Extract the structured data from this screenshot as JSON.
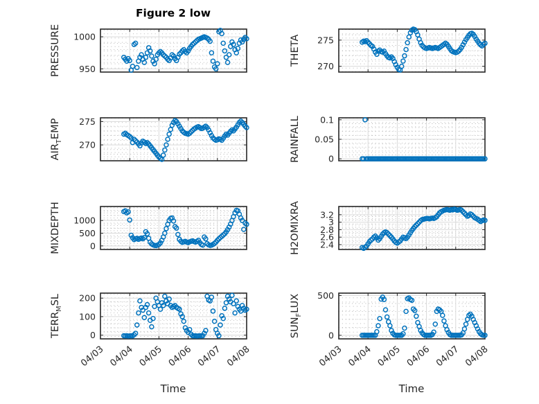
{
  "figure": {
    "title": "Figure 2 low",
    "xlabel": "Time"
  },
  "palette": {
    "marker": "#0072BD",
    "axis": "#262626",
    "text": "#262626",
    "grid_major": "#d9d9d9",
    "grid_minor": "#a8a8a8",
    "title": "#000000",
    "background": "#ffffff"
  },
  "chart_data": [
    {
      "type": "scatter",
      "name": "PRESSURE",
      "row": 0,
      "col": 0,
      "ylabel": {
        "pre": "PRESSURE",
        "sub": "",
        "post": ""
      },
      "ylim": [
        945,
        1012
      ],
      "yticks": [
        950,
        1000
      ],
      "ytick_labels": [
        "950",
        "1000"
      ],
      "y_minor_step": 10,
      "xlim": [
        3,
        8
      ],
      "xticks": [
        3,
        4,
        5,
        6,
        7,
        8
      ],
      "xtick_labels": [],
      "x_minor_step": 0.125,
      "x_start": 3.8,
      "x_step": 0.05,
      "y": [
        968,
        965,
        962,
        966,
        963,
        948,
        954,
        988,
        990,
        952,
        962,
        968,
        972,
        965,
        960,
        968,
        975,
        983,
        978,
        970,
        962,
        958,
        965,
        972,
        975,
        977,
        975,
        972,
        970,
        968,
        965,
        963,
        967,
        972,
        970,
        966,
        963,
        968,
        973,
        975,
        978,
        980,
        977,
        975,
        978,
        982,
        985,
        988,
        990,
        992,
        994,
        996,
        997,
        998,
        999,
        1000,
        999,
        998,
        996,
        993,
        975,
        962,
        953,
        950,
        958,
        1008,
        1010,
        1005,
        990,
        978,
        968,
        960,
        972,
        985,
        992,
        988,
        980,
        975,
        982,
        990,
        995,
        992,
        996,
        999,
        997
      ]
    },
    {
      "type": "scatter",
      "name": "THETA",
      "row": 0,
      "col": 1,
      "ylabel": {
        "pre": "THETA",
        "sub": "",
        "post": ""
      },
      "ylim": [
        268.9,
        277.1
      ],
      "yticks": [
        270,
        275
      ],
      "ytick_labels": [
        "270",
        "275"
      ],
      "y_minor_step": 1,
      "xlim": [
        3,
        8
      ],
      "xticks": [
        3,
        4,
        5,
        6,
        7,
        8
      ],
      "xtick_labels": [],
      "x_minor_step": 0.125,
      "x_start": 3.8,
      "x_step": 0.05,
      "y": [
        274.6,
        274.8,
        274.7,
        274.9,
        274.6,
        274.3,
        274.0,
        273.8,
        273.3,
        272.7,
        272.3,
        272.9,
        273.1,
        272.8,
        272.7,
        272.9,
        272.4,
        272.0,
        271.7,
        271.6,
        271.8,
        271.5,
        270.9,
        270.3,
        269.8,
        269.4,
        269.3,
        270.0,
        271.0,
        272.0,
        273.2,
        274.5,
        275.6,
        276.4,
        276.9,
        277.1,
        277.0,
        276.6,
        276.0,
        275.2,
        274.5,
        274.0,
        273.7,
        273.5,
        273.4,
        273.5,
        273.6,
        273.5,
        273.4,
        273.5,
        273.6,
        273.5,
        273.4,
        273.6,
        273.8,
        274.0,
        274.2,
        274.4,
        274.2,
        273.8,
        273.4,
        273.0,
        272.8,
        272.7,
        272.6,
        272.7,
        272.9,
        273.2,
        273.6,
        274.1,
        274.6,
        275.1,
        275.5,
        275.9,
        276.2,
        276.3,
        276.1,
        275.7,
        275.2,
        274.8,
        274.4,
        274.1,
        273.9,
        274.2,
        274.4
      ]
    },
    {
      "type": "scatter",
      "name": "AIR_TEMP",
      "row": 1,
      "col": 0,
      "ylabel": {
        "pre": "AIR",
        "sub": "T",
        "post": "EMP"
      },
      "ylim": [
        266.6,
        275.8
      ],
      "yticks": [
        270,
        275
      ],
      "ytick_labels": [
        "270",
        "275"
      ],
      "y_minor_step": 1,
      "xlim": [
        3,
        8
      ],
      "xticks": [
        3,
        4,
        5,
        6,
        7,
        8
      ],
      "xtick_labels": [],
      "x_minor_step": 0.125,
      "x_start": 3.8,
      "x_step": 0.05,
      "y": [
        272.3,
        272.5,
        272.2,
        272.0,
        271.8,
        271.5,
        270.5,
        271.2,
        270.9,
        270.6,
        270.2,
        269.8,
        270.4,
        270.8,
        270.6,
        270.3,
        270.5,
        270.2,
        269.8,
        269.4,
        269.0,
        268.6,
        268.2,
        267.8,
        267.4,
        267.1,
        266.9,
        267.8,
        268.9,
        270.0,
        271.2,
        272.3,
        273.3,
        274.2,
        274.8,
        275.2,
        275.0,
        274.5,
        274.0,
        273.5,
        273.0,
        272.7,
        272.5,
        272.4,
        272.3,
        272.5,
        272.8,
        273.1,
        273.4,
        273.6,
        273.8,
        273.9,
        273.7,
        273.5,
        273.6,
        273.8,
        274.0,
        273.7,
        273.2,
        272.6,
        272.0,
        271.5,
        271.2,
        271.0,
        271.1,
        271.3,
        271.2,
        271.0,
        271.4,
        271.9,
        272.3,
        272.1,
        272.5,
        272.9,
        273.2,
        273.0,
        273.4,
        273.8,
        274.3,
        274.8,
        275.1,
        274.8,
        274.4,
        274.0,
        273.7
      ]
    },
    {
      "type": "scatter",
      "name": "RAINFALL",
      "row": 1,
      "col": 1,
      "ylabel": {
        "pre": "RAINFALL",
        "sub": "",
        "post": ""
      },
      "ylim": [
        -0.005,
        0.105
      ],
      "yticks": [
        0,
        0.05,
        0.1
      ],
      "ytick_labels": [
        "0",
        "0.05",
        "0.1"
      ],
      "y_minor_step": 0.01,
      "xlim": [
        3,
        8
      ],
      "xticks": [
        3,
        4,
        5,
        6,
        7,
        8
      ],
      "xtick_labels": [],
      "x_minor_step": 0.125,
      "x_start": 3.8,
      "x_step": 0.05,
      "y": [
        0,
        0,
        0.1,
        0,
        0,
        0,
        0,
        0,
        0,
        0,
        0,
        0,
        0,
        0,
        0,
        0,
        0,
        0,
        0,
        0,
        0,
        0,
        0,
        0,
        0,
        0,
        0,
        0,
        0,
        0,
        0,
        0,
        0,
        0,
        0,
        0,
        0,
        0,
        0,
        0,
        0,
        0,
        0,
        0,
        0,
        0,
        0,
        0,
        0,
        0,
        0,
        0,
        0,
        0,
        0,
        0,
        0,
        0,
        0,
        0,
        0,
        0,
        0,
        0,
        0,
        0,
        0,
        0,
        0,
        0,
        0,
        0,
        0,
        0,
        0,
        0,
        0,
        0,
        0,
        0,
        0,
        0,
        0,
        0,
        0
      ]
    },
    {
      "type": "scatter",
      "name": "MIXDEPTH",
      "row": 2,
      "col": 0,
      "ylabel": {
        "pre": "MIXDEPTH",
        "sub": "",
        "post": ""
      },
      "ylim": [
        -140,
        1550
      ],
      "yticks": [
        0,
        500,
        1000
      ],
      "ytick_labels": [
        "0",
        "500",
        "1000"
      ],
      "y_minor_step": 100,
      "xlim": [
        3,
        8
      ],
      "xticks": [
        3,
        4,
        5,
        6,
        7,
        8
      ],
      "xtick_labels": [],
      "x_minor_step": 0.125,
      "x_start": 3.8,
      "x_step": 0.05,
      "y": [
        1350,
        1380,
        1300,
        1340,
        1020,
        420,
        320,
        250,
        280,
        300,
        260,
        290,
        310,
        280,
        330,
        560,
        480,
        300,
        150,
        80,
        40,
        20,
        10,
        30,
        60,
        120,
        220,
        350,
        500,
        680,
        850,
        1000,
        1080,
        1100,
        980,
        760,
        700,
        450,
        260,
        180,
        140,
        160,
        180,
        150,
        130,
        160,
        180,
        200,
        170,
        150,
        180,
        220,
        130,
        60,
        30,
        350,
        280,
        90,
        40,
        20,
        30,
        60,
        100,
        150,
        220,
        280,
        330,
        380,
        430,
        480,
        550,
        640,
        740,
        860,
        1000,
        1150,
        1300,
        1400,
        1380,
        1250,
        1100,
        1000,
        650,
        900,
        850
      ]
    },
    {
      "type": "scatter",
      "name": "H2OMIXRA",
      "row": 2,
      "col": 1,
      "ylabel": {
        "pre": "H2OMIXRA",
        "sub": "",
        "post": ""
      },
      "ylim": [
        2.27,
        3.42
      ],
      "yticks": [
        2.4,
        2.6,
        2.8,
        3,
        3.2
      ],
      "ytick_labels": [
        "2.4",
        "2.6",
        "2.8",
        "3",
        "3.2"
      ],
      "y_minor_step": 0.05,
      "xlim": [
        3,
        8
      ],
      "xticks": [
        3,
        4,
        5,
        6,
        7,
        8
      ],
      "xtick_labels": [],
      "x_minor_step": 0.125,
      "x_start": 3.8,
      "x_step": 0.05,
      "y": [
        2.32,
        2.3,
        2.33,
        2.36,
        2.42,
        2.48,
        2.52,
        2.55,
        2.6,
        2.63,
        2.58,
        2.52,
        2.56,
        2.62,
        2.68,
        2.72,
        2.74,
        2.72,
        2.68,
        2.64,
        2.6,
        2.55,
        2.5,
        2.46,
        2.44,
        2.47,
        2.5,
        2.55,
        2.6,
        2.58,
        2.56,
        2.6,
        2.66,
        2.72,
        2.78,
        2.83,
        2.88,
        2.92,
        2.96,
        3.0,
        3.04,
        3.07,
        3.08,
        3.09,
        3.1,
        3.1,
        3.09,
        3.1,
        3.11,
        3.1,
        3.12,
        3.15,
        3.2,
        3.25,
        3.28,
        3.3,
        3.32,
        3.33,
        3.34,
        3.33,
        3.32,
        3.34,
        3.33,
        3.35,
        3.34,
        3.32,
        3.33,
        3.34,
        3.32,
        3.28,
        3.24,
        3.2,
        3.16,
        3.18,
        3.22,
        3.2,
        3.16,
        3.12,
        3.1,
        3.08,
        3.05,
        3.02,
        3.04,
        3.06,
        3.05
      ]
    },
    {
      "type": "scatter",
      "name": "TERR_MSL",
      "row": 3,
      "col": 0,
      "ylabel": {
        "pre": "TERR",
        "sub": "M",
        "post": "SL"
      },
      "ylim": [
        -20,
        227
      ],
      "yticks": [
        0,
        100,
        200
      ],
      "ytick_labels": [
        "0",
        "100",
        "200"
      ],
      "y_minor_step": 20,
      "xlim": [
        3,
        8
      ],
      "xticks": [
        3,
        4,
        5,
        6,
        7,
        8
      ],
      "xtick_labels": [
        "04/03",
        "04/04",
        "04/05",
        "04/06",
        "04/07",
        "04/08"
      ],
      "x_minor_step": 0.125,
      "x_start": 3.8,
      "x_step": 0.05,
      "y": [
        -3,
        -4,
        -3,
        -5,
        -4,
        -3,
        -4,
        2,
        10,
        55,
        120,
        185,
        150,
        135,
        95,
        150,
        165,
        120,
        80,
        45,
        90,
        155,
        200,
        180,
        160,
        140,
        175,
        160,
        210,
        185,
        170,
        195,
        160,
        150,
        155,
        160,
        150,
        145,
        140,
        115,
        100,
        75,
        40,
        25,
        15,
        30,
        5,
        -3,
        -4,
        -3,
        -5,
        -4,
        -3,
        -4,
        -3,
        10,
        25,
        210,
        190,
        185,
        205,
        130,
        75,
        30,
        10,
        -3,
        55,
        105,
        90,
        145,
        175,
        210,
        195,
        180,
        215,
        170,
        120,
        185,
        155,
        140,
        130,
        160,
        145,
        135,
        140
      ]
    },
    {
      "type": "scatter",
      "name": "SUN_FLUX",
      "row": 3,
      "col": 1,
      "ylabel": {
        "pre": "SUN",
        "sub": "F",
        "post": "LUX"
      },
      "ylim": [
        -45,
        530
      ],
      "yticks": [
        0,
        500
      ],
      "ytick_labels": [
        "0",
        "500"
      ],
      "y_minor_step": 100,
      "xlim": [
        3,
        8
      ],
      "xticks": [
        3,
        4,
        5,
        6,
        7,
        8
      ],
      "xtick_labels": [
        "04/03",
        "04/04",
        "04/05",
        "04/06",
        "04/07",
        "04/08"
      ],
      "x_minor_step": 0.125,
      "x_start": 3.8,
      "x_step": 0.05,
      "y": [
        0,
        0,
        0,
        0,
        0,
        0,
        0,
        0,
        0,
        0,
        45,
        120,
        210,
        455,
        480,
        450,
        320,
        230,
        170,
        120,
        60,
        25,
        5,
        0,
        0,
        0,
        0,
        0,
        20,
        90,
        300,
        460,
        470,
        450,
        440,
        330,
        310,
        240,
        160,
        110,
        60,
        30,
        10,
        0,
        0,
        0,
        0,
        0,
        10,
        40,
        140,
        300,
        330,
        320,
        300,
        250,
        180,
        120,
        70,
        35,
        10,
        0,
        0,
        0,
        0,
        0,
        0,
        0,
        5,
        30,
        80,
        140,
        200,
        250,
        265,
        240,
        200,
        160,
        120,
        80,
        45,
        20,
        5,
        0,
        0
      ]
    }
  ]
}
